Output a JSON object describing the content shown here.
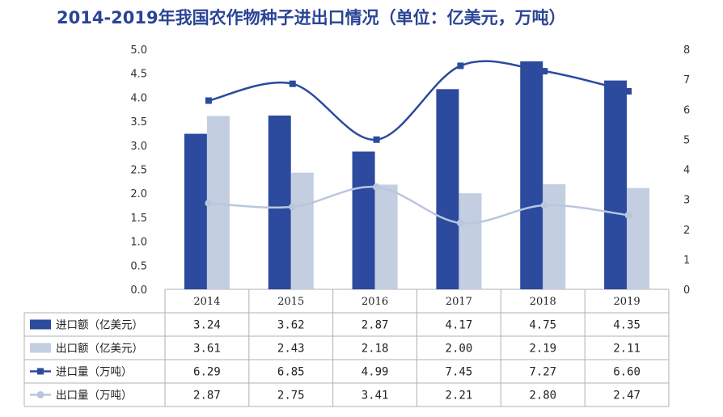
{
  "chart_data": {
    "type": "bar",
    "title": "2014-2019年我国农作物种子进出口情况（单位：亿美元，万吨）",
    "categories": [
      "2014",
      "2015",
      "2016",
      "2017",
      "2018",
      "2019"
    ],
    "left_axis": {
      "ylim": [
        0,
        5
      ],
      "ticks": [
        "0.0",
        "0.5",
        "1.0",
        "1.5",
        "2.0",
        "2.5",
        "3.0",
        "3.5",
        "4.0",
        "4.5",
        "5.0"
      ]
    },
    "right_axis": {
      "ylim": [
        0,
        8
      ],
      "ticks": [
        "0",
        "1",
        "2",
        "3",
        "4",
        "5",
        "6",
        "7",
        "8"
      ]
    },
    "grid": false,
    "legend": "data-table",
    "series": [
      {
        "name": "进口额（亿美元）",
        "type": "bar",
        "axis": "left",
        "color": "#2c4a9e",
        "values": [
          3.24,
          3.62,
          2.87,
          4.17,
          4.75,
          4.35
        ],
        "labels": [
          "3.24",
          "3.62",
          "2.87",
          "4.17",
          "4.75",
          "4.35"
        ]
      },
      {
        "name": "出口额（亿美元）",
        "type": "bar",
        "axis": "left",
        "color": "#c3cee1",
        "values": [
          3.61,
          2.43,
          2.18,
          2.0,
          2.19,
          2.11
        ],
        "labels": [
          "3.61",
          "2.43",
          "2.18",
          "2.00",
          "2.19",
          "2.11"
        ]
      },
      {
        "name": "进口量（万吨）",
        "type": "line",
        "axis": "right",
        "color": "#2c4a9e",
        "marker": "square",
        "values": [
          6.29,
          6.85,
          4.99,
          7.45,
          7.27,
          6.6
        ],
        "labels": [
          "6.29",
          "6.85",
          "4.99",
          "7.45",
          "7.27",
          "6.60"
        ]
      },
      {
        "name": "出口量（万吨）",
        "type": "line",
        "axis": "right",
        "color": "#b9c7de",
        "marker": "circle",
        "values": [
          2.87,
          2.75,
          3.41,
          2.21,
          2.8,
          2.47
        ],
        "labels": [
          "2.87",
          "2.75",
          "3.41",
          "2.21",
          "2.80",
          "2.47"
        ]
      }
    ]
  }
}
